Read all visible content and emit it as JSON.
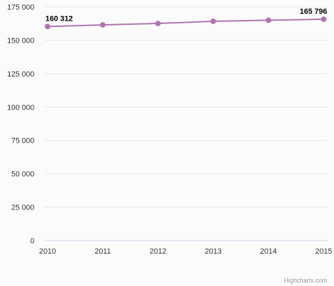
{
  "chart_data": {
    "type": "line",
    "x": [
      "2010",
      "2011",
      "2012",
      "2013",
      "2014",
      "2015"
    ],
    "series": [
      {
        "values": [
          160312,
          161500,
          162600,
          164200,
          165000,
          165796
        ],
        "color": "#b173b0"
      }
    ],
    "data_labels": [
      {
        "index": 0,
        "text": "160 312"
      },
      {
        "index": 5,
        "text": "165 796"
      }
    ],
    "y_ticks": [
      {
        "value": 0,
        "label": "0"
      },
      {
        "value": 25000,
        "label": "25 000"
      },
      {
        "value": 50000,
        "label": "50 000"
      },
      {
        "value": 75000,
        "label": "75 000"
      },
      {
        "value": 100000,
        "label": "100 000"
      },
      {
        "value": 125000,
        "label": "125 000"
      },
      {
        "value": 150000,
        "label": "150 000"
      },
      {
        "value": 175000,
        "label": "175 000"
      }
    ],
    "ylim": [
      0,
      175000
    ],
    "grid": true,
    "legend": "none",
    "title": "",
    "xlabel": "",
    "ylabel": ""
  },
  "credits": "Highcharts.com"
}
